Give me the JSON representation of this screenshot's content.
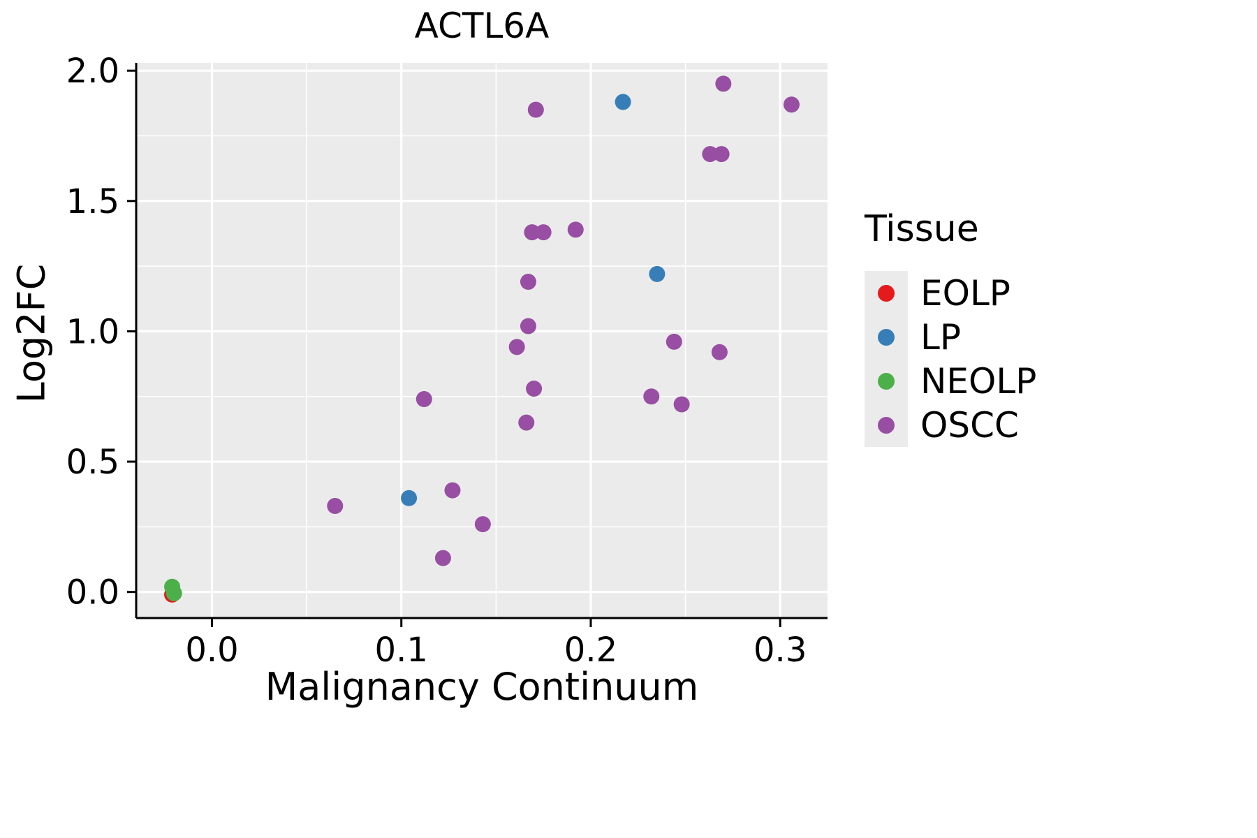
{
  "chart_data": {
    "type": "scatter",
    "title": "ACTL6A",
    "xlabel": "Malignancy Continuum",
    "ylabel": "Log2FC",
    "xlim": [
      -0.04,
      0.325
    ],
    "ylim": [
      -0.1,
      2.03
    ],
    "x_ticks": [
      0.0,
      0.1,
      0.2,
      0.3
    ],
    "x_tick_labels": [
      "0.0",
      "0.1",
      "0.2",
      "0.3"
    ],
    "y_ticks": [
      0.0,
      0.5,
      1.0,
      1.5,
      2.0
    ],
    "y_tick_labels": [
      "0.0",
      "0.5",
      "1.0",
      "1.5",
      "2.0"
    ],
    "x_minor_ticks": [
      -0.0,
      0.05,
      0.15,
      0.25
    ],
    "y_minor_ticks": [
      0.25,
      0.75,
      1.25,
      1.75
    ],
    "grid": true,
    "panel_background": "#EBEBEB",
    "grid_color": "#FFFFFF",
    "axis_color": "#000000",
    "point_radius": 11.5,
    "legend": {
      "title": "Tissue",
      "position": "right",
      "key_background": "#EBEBEB"
    },
    "series": [
      {
        "name": "EOLP",
        "color": "#E41A1C",
        "points": [
          [
            -0.021,
            -0.01
          ]
        ]
      },
      {
        "name": "LP",
        "color": "#377EB8",
        "points": [
          [
            0.104,
            0.36
          ],
          [
            0.217,
            1.88
          ],
          [
            0.235,
            1.22
          ]
        ]
      },
      {
        "name": "NEOLP",
        "color": "#4DAF4A",
        "points": [
          [
            -0.021,
            0.02
          ],
          [
            -0.02,
            -0.005
          ]
        ]
      },
      {
        "name": "OSCC",
        "color": "#984EA3",
        "points": [
          [
            0.065,
            0.33
          ],
          [
            0.112,
            0.74
          ],
          [
            0.122,
            0.13
          ],
          [
            0.127,
            0.39
          ],
          [
            0.143,
            0.26
          ],
          [
            0.161,
            0.94
          ],
          [
            0.166,
            0.65
          ],
          [
            0.167,
            1.02
          ],
          [
            0.167,
            1.19
          ],
          [
            0.169,
            1.38
          ],
          [
            0.17,
            0.78
          ],
          [
            0.171,
            1.85
          ],
          [
            0.175,
            1.38
          ],
          [
            0.192,
            1.39
          ],
          [
            0.232,
            0.75
          ],
          [
            0.244,
            0.96
          ],
          [
            0.248,
            0.72
          ],
          [
            0.263,
            1.68
          ],
          [
            0.269,
            1.68
          ],
          [
            0.268,
            0.92
          ],
          [
            0.27,
            1.95
          ],
          [
            0.306,
            1.87
          ]
        ]
      }
    ]
  }
}
